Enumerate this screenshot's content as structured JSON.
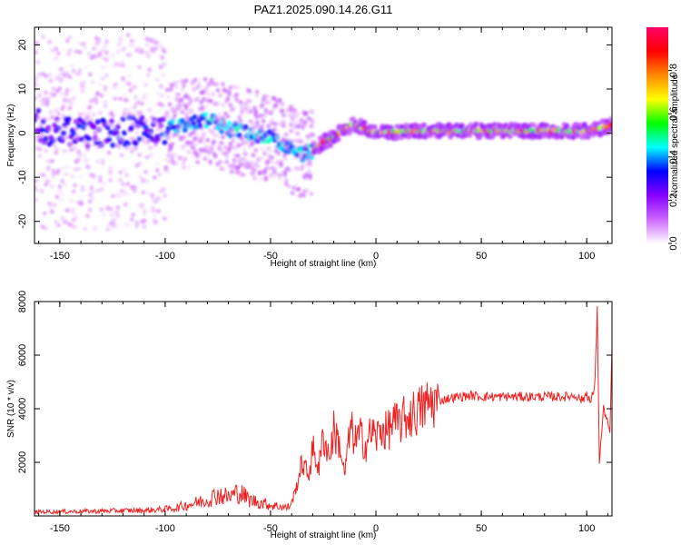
{
  "title": "PAZ1.2025.090.14.26.G11",
  "chart_data": [
    {
      "type": "heatmap",
      "xlabel": "Height of straight line (km)",
      "ylabel": "Frequency (Hz)",
      "xlim": [
        -162,
        112
      ],
      "ylim": [
        -25,
        24
      ],
      "xticks": [
        -150,
        -100,
        -50,
        0,
        50,
        100
      ],
      "xtick_labels": [
        "-150",
        "-100",
        "-50",
        "0",
        "50",
        "100"
      ],
      "yticks": [
        -20,
        -10,
        0,
        10,
        20
      ],
      "ytick_labels": [
        "-20",
        "-10",
        "0",
        "10",
        "20"
      ],
      "ridge": {
        "description_points_x": [
          -160,
          -130,
          -100,
          -90,
          -80,
          -70,
          -60,
          -50,
          -45,
          -40,
          -35,
          -30,
          -25,
          -20,
          -15,
          -10,
          -5,
          0,
          20,
          50,
          80,
          100,
          105,
          110,
          112
        ],
        "freq_y": [
          0,
          0,
          1,
          2,
          3,
          1,
          0,
          -1,
          -2,
          -4,
          -5,
          -4,
          -2,
          -1,
          1,
          2,
          1,
          0,
          0.5,
          0.5,
          0.5,
          0.5,
          1,
          1.5,
          2
        ]
      },
      "colorbar": {
        "label": "Normalized spectral amplitude",
        "range": [
          0,
          1
        ],
        "ticks": [
          0.0,
          0.2,
          0.4,
          0.6,
          0.8
        ],
        "tick_labels": [
          "0.0",
          "0.2",
          "0.4",
          "0.6",
          "0.8"
        ],
        "colormap": [
          "#ffffff",
          "#cc66ff",
          "#8800ff",
          "#0000ff",
          "#00ffff",
          "#00ff00",
          "#ffff00",
          "#ff8800",
          "#ff0000",
          "#ff0066"
        ]
      },
      "grid": false
    },
    {
      "type": "line",
      "xlabel": "Height of straight line (km)",
      "ylabel": "SNR (10 * v/v)",
      "xlim": [
        -162,
        112
      ],
      "ylim": [
        0,
        8000
      ],
      "xticks": [
        -150,
        -100,
        -50,
        0,
        50,
        100
      ],
      "xtick_labels": [
        "-150",
        "-100",
        "-50",
        "0",
        "50",
        "100"
      ],
      "yticks": [
        2000,
        4000,
        6000,
        8000
      ],
      "ytick_labels": [
        "2000",
        "4000",
        "6000",
        "8000"
      ],
      "series": [
        {
          "color": "#ee2222",
          "x": [
            -162,
            -150,
            -140,
            -130,
            -120,
            -110,
            -100,
            -95,
            -90,
            -85,
            -80,
            -75,
            -70,
            -65,
            -60,
            -55,
            -50,
            -45,
            -42,
            -40,
            -38,
            -35,
            -32,
            -30,
            -27,
            -25,
            -22,
            -20,
            -17,
            -15,
            -12,
            -10,
            -7,
            -5,
            -2,
            0,
            3,
            5,
            8,
            10,
            15,
            20,
            25,
            30,
            35,
            40,
            45,
            50,
            60,
            70,
            80,
            90,
            95,
            98,
            100,
            102,
            104,
            105,
            106,
            108,
            110,
            111,
            112
          ],
          "y": [
            150,
            160,
            170,
            180,
            200,
            200,
            250,
            300,
            400,
            500,
            600,
            800,
            700,
            900,
            600,
            500,
            400,
            350,
            300,
            500,
            1000,
            2000,
            1500,
            2500,
            1800,
            3000,
            2200,
            3200,
            2600,
            1500,
            3300,
            2800,
            3000,
            2600,
            3200,
            2900,
            3300,
            3100,
            3500,
            3400,
            3700,
            3900,
            4200,
            4300,
            4400,
            4450,
            4500,
            4450,
            4450,
            4450,
            4450,
            4450,
            4500,
            4300,
            4600,
            4200,
            5000,
            7900,
            2000,
            4000,
            3500,
            3000,
            6300
          ]
        }
      ],
      "grid": false
    }
  ]
}
